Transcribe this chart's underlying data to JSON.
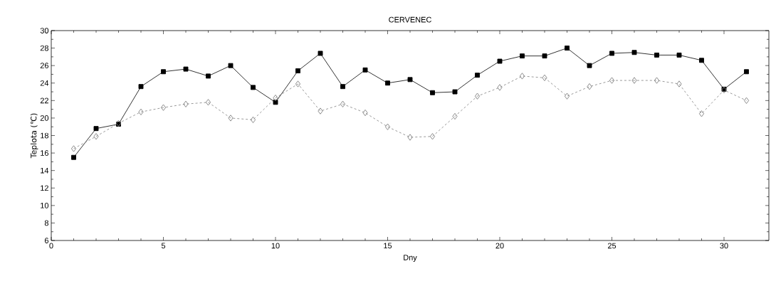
{
  "chart_data": {
    "type": "line",
    "title": "CERVENEC",
    "xlabel": "Dny",
    "ylabel": "Teplota (℃)",
    "x": [
      1,
      2,
      3,
      4,
      5,
      6,
      7,
      8,
      9,
      10,
      11,
      12,
      13,
      14,
      15,
      16,
      17,
      18,
      19,
      20,
      21,
      22,
      23,
      24,
      25,
      26,
      27,
      28,
      29,
      30,
      31
    ],
    "xlim": [
      0,
      32
    ],
    "xticks": [
      0,
      5,
      10,
      15,
      20,
      25,
      30
    ],
    "ylim": [
      6,
      30
    ],
    "yticks": [
      6,
      8,
      10,
      12,
      14,
      16,
      18,
      20,
      22,
      24,
      26,
      28,
      30
    ],
    "grid": false,
    "series": [
      {
        "color": "#000000",
        "marker": "square",
        "line_style": "solid",
        "values": [
          15.5,
          18.8,
          19.3,
          23.6,
          25.3,
          25.6,
          24.8,
          26.0,
          23.5,
          21.8,
          25.4,
          27.4,
          23.6,
          25.5,
          24.0,
          24.4,
          22.9,
          23.0,
          24.9,
          26.5,
          27.1,
          27.1,
          28.0,
          26.0,
          27.4,
          27.5,
          27.2,
          27.2,
          26.6,
          23.3,
          25.3
        ]
      },
      {
        "color": "#808080",
        "marker": "diamond",
        "line_style": "dashed",
        "values": [
          16.5,
          17.9,
          19.4,
          20.7,
          21.2,
          21.6,
          21.8,
          20.0,
          19.8,
          22.3,
          23.9,
          20.8,
          21.6,
          20.6,
          19.0,
          17.8,
          17.9,
          20.2,
          22.5,
          23.5,
          24.8,
          24.6,
          22.5,
          23.6,
          24.3,
          24.3,
          24.3,
          23.9,
          20.5,
          23.2,
          22.0
        ]
      }
    ]
  }
}
